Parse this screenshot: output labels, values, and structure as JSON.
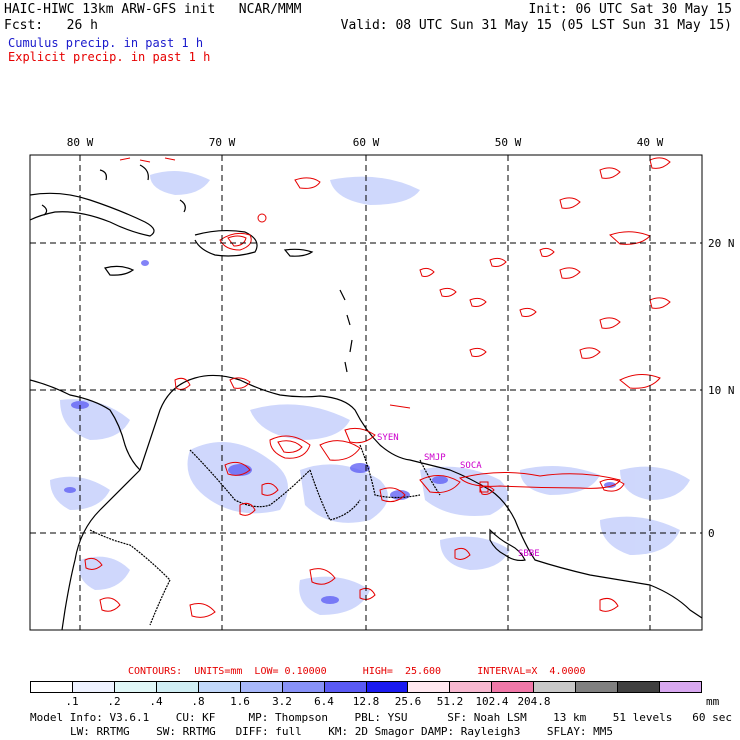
{
  "header": {
    "title_left": "HAIC-HIWC 13km ARW-GFS init   NCAR/MMM",
    "forecast": "Fcst:   26 h",
    "init": "Init: 06 UTC Sat 30 May 15",
    "valid": "Valid: 08 UTC Sun 31 May 15 (05 LST Sun 31 May 15)"
  },
  "legend": {
    "cumulus": {
      "label": "Cumulus precip. in past 1 h",
      "color": "#1a1acc"
    },
    "explicit": {
      "label": "Explicit precip. in past 1 h",
      "color": "#e60000"
    }
  },
  "map": {
    "lon_labels": [
      "80 W",
      "70 W",
      "60 W",
      "50 W",
      "40 W"
    ],
    "lat_labels": [
      "20 N",
      "10 N",
      "0"
    ],
    "station_labels": [
      "SYEN",
      "SMJP",
      "SOCA",
      "SBBE"
    ],
    "contour_color": "#e60000",
    "coast_color": "#000000",
    "station_color": "#cc00cc"
  },
  "contours": {
    "text": "CONTOURS:  UNITS=mm  LOW= 0.10000      HIGH=  25.600      INTERVAL=X  4.0000"
  },
  "colorbar": {
    "colors": [
      "#ffffff",
      "#eef2ff",
      "#e0f7f7",
      "#d0eef4",
      "#c2d8fa",
      "#a8b8fa",
      "#8892f8",
      "#5a5af4",
      "#1a1af0",
      "#ffe8f0",
      "#f7b8d0",
      "#f078a8",
      "#c8c8c8",
      "#808080",
      "#404040",
      "#d8a8f0"
    ],
    "labels": [
      ".1",
      ".2",
      ".4",
      ".8",
      "1.6",
      "3.2",
      "6.4",
      "12.8",
      "25.6",
      "51.2",
      "102.4",
      "204.8"
    ],
    "unit": "mm"
  },
  "footer": {
    "line1": "Model Info: V3.6.1    CU: KF     MP: Thompson    PBL: YSU      SF: Noah LSM    13 km    51 levels   60 sec",
    "line2": "LW: RRTMG    SW: RRTMG   DIFF: full    KM: 2D Smagor DAMP: Rayleigh3    SFLAY: MM5"
  }
}
